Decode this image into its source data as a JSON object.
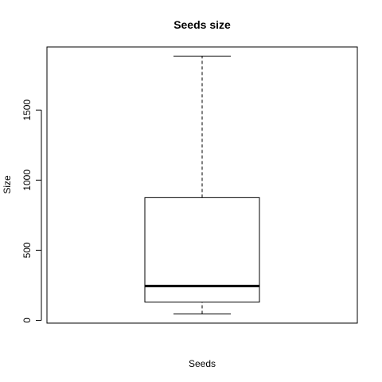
{
  "chart_data": {
    "type": "boxplot",
    "title": "Seeds size",
    "xlabel": "Seeds",
    "ylabel": "Size",
    "ylim": [
      -20,
      1950
    ],
    "yticks": [
      0,
      500,
      1000,
      1500
    ],
    "grid": false,
    "boxes": [
      {
        "min": 45,
        "q1": 130,
        "median": 245,
        "q3": 875,
        "max": 1885
      }
    ],
    "colors": {
      "box_fill": "#ffffff",
      "stroke": "#000000"
    }
  }
}
